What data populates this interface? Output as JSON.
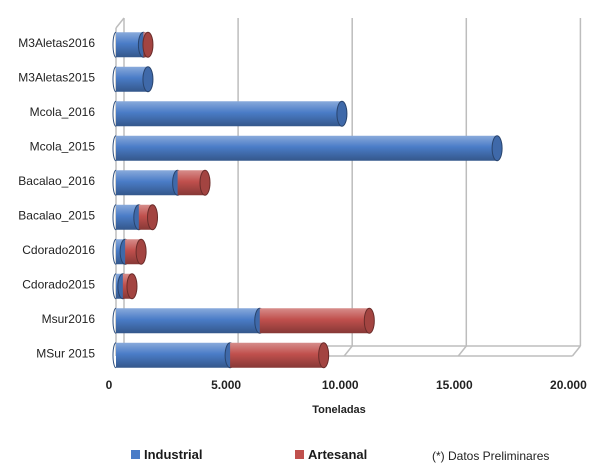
{
  "chart_data": {
    "type": "bar",
    "orientation": "horizontal",
    "stacked": true,
    "three_d": true,
    "categories": [
      "M3Aletas2016",
      "M3Aletas2015",
      "Mcola_2016",
      "Mcola_2015",
      "Bacalao_2016",
      "Bacalao_2015",
      "Cdorado2016",
      "Cdorado2015",
      "Msur2016",
      "MSur 2015"
    ],
    "series": [
      {
        "name": "Industrial",
        "color": "#4a7cc7",
        "values": [
          1200,
          1400,
          9900,
          16700,
          2700,
          1000,
          400,
          300,
          6300,
          5000
        ]
      },
      {
        "name": "Artesanal",
        "color": "#c0504d",
        "values": [
          200,
          0,
          0,
          0,
          1200,
          600,
          700,
          400,
          4800,
          4100
        ]
      }
    ],
    "xlim": [
      0,
      20000
    ],
    "x_ticks": [
      "0",
      "5.000",
      "10.000",
      "15.000",
      "20.000"
    ],
    "xlabel": "Toneladas",
    "ylabel": "",
    "grid": true,
    "legend_position": "bottom",
    "note": "(*) Datos Preliminares"
  }
}
